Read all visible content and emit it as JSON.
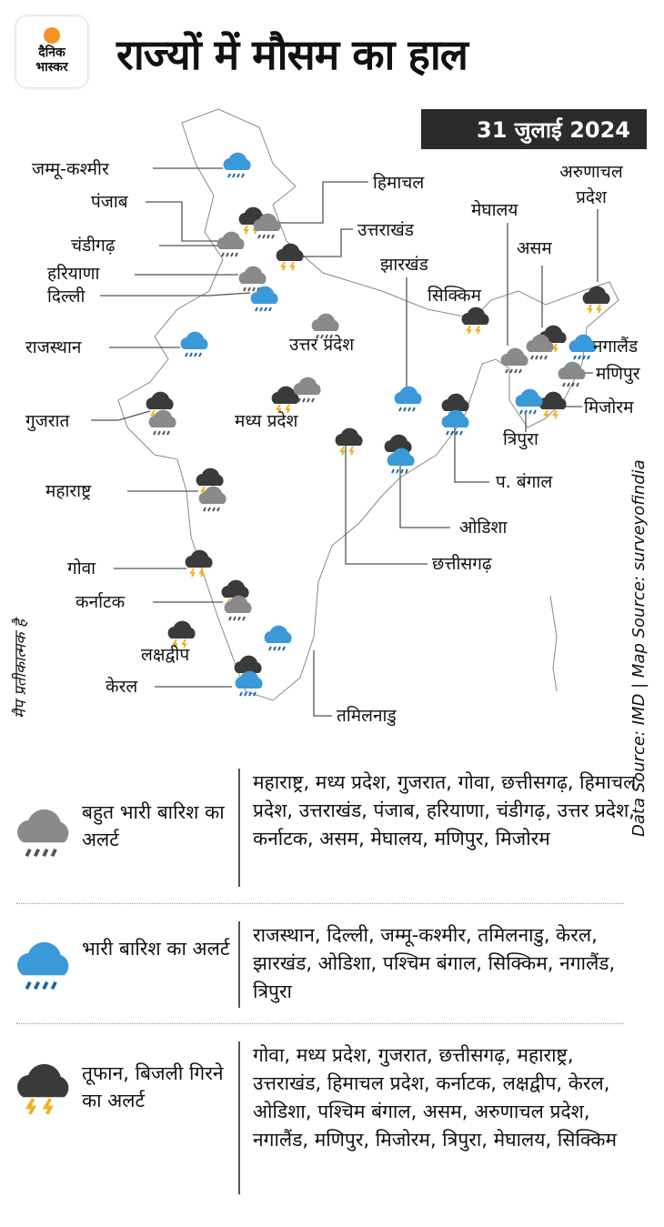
{
  "header": {
    "logo_text": [
      "दैनिक",
      "भास्कर"
    ],
    "title": "राज्यों में मौसम का हाल",
    "date": "31 जुलाई 2024"
  },
  "colors": {
    "heavy_rain": "#8a8a8a",
    "rain": "#3a9ad9",
    "storm": "#3a3a3a",
    "lightning": "#f2b01e",
    "date_bg": "#2b2b2b"
  },
  "map": {
    "labels": {
      "jk": "जम्मू-कश्मीर",
      "himachal": "हिमाचल",
      "punjab": "पंजाब",
      "uttarakhand": "उत्तराखंड",
      "chandigarh": "चंडीगढ़",
      "haryana": "हरियाणा",
      "delhi": "दिल्ली",
      "jharkhand": "झारखंड",
      "meghalaya": "मेघालय",
      "arunachal": "अरुणाचल प्रदेश",
      "assam": "असम",
      "sikkim": "सिक्किम",
      "nagaland": "नगालैंड",
      "manipur": "मणिपुर",
      "mizoram": "मिजोरम",
      "tripura": "त्रिपुरा",
      "rajasthan": "राजस्थान",
      "up": "उत्तर प्रदेश",
      "mp": "मध्य प्रदेश",
      "gujarat": "गुजरात",
      "maharashtra": "महाराष्ट्र",
      "chhattisgarh": "छत्तीसगढ़",
      "odisha": "ओडिशा",
      "wb": "प. बंगाल",
      "goa": "गोवा",
      "karnataka": "कर्नाटक",
      "lakshadweep": "लक्षद्वीप",
      "kerala": "केरल",
      "tamilnadu": "तमिलनाडु"
    },
    "disclaimer": "मैप प्रतीकात्मक है",
    "source": "Data Source: IMD |  Map Source: surveyofindia"
  },
  "legend": [
    {
      "icon": "heavy-rain-icon",
      "name": "बहुत भारी बारिश का अलर्ट",
      "states": "महाराष्ट्र, मध्य प्रदेश, गुजरात, गोवा, छत्तीसगढ़, हिमाचल प्रदेश, उत्तराखंड, पंजाब, हरियाणा, चंडीगढ़, उत्तर प्रदेश, कर्नाटक, असम, मेघालय, मणिपुर, मिजोरम"
    },
    {
      "icon": "rain-icon",
      "name": "भारी बारिश का अलर्ट",
      "states": "राजस्थान, दिल्ली, जम्मू-कश्मीर, तमिलनाडु, केरल, झारखंड, ओडिशा, पश्चिम बंगाल, सिक्किम, नगालैंड, त्रिपुरा"
    },
    {
      "icon": "storm-icon",
      "name": "तूफान, बिजली गिरने का अलर्ट",
      "states": "गोवा, मध्य प्रदेश, गुजरात, छत्तीसगढ़, महाराष्ट्र, उत्तराखंड, हिमाचल प्रदेश, कर्नाटक, लक्षद्वीप, केरल, ओडिशा, पश्चिम बंगाल, असम, अरुणाचल प्रदेश, नगालैंड, मणिपुर, मिजोरम, त्रिपुरा, मेघालय, सिक्किम"
    }
  ]
}
